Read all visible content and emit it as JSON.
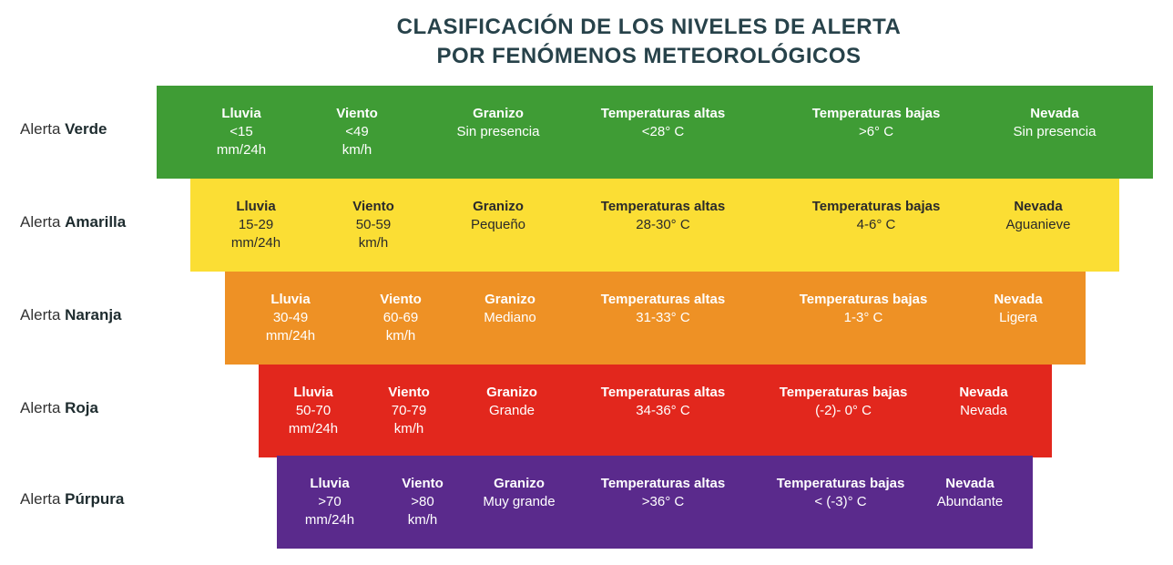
{
  "title": {
    "line1": "CLASIFICACIÓN DE LOS NIVELES DE ALERTA",
    "line2": "POR FENÓMENOS METEOROLÓGICOS"
  },
  "headers": {
    "lluvia": "Lluvia",
    "viento": "Viento",
    "granizo": "Granizo",
    "temp_altas": "Temperaturas altas",
    "temp_bajas": "Temperaturas bajas",
    "nevada": "Nevada"
  },
  "label_prefix": "Alerta",
  "levels": [
    {
      "name": "Verde",
      "color": "#3f9c35",
      "text_color": "#ffffff",
      "lluvia": [
        "<15",
        "mm/24h"
      ],
      "viento": [
        "<49",
        "km/h"
      ],
      "granizo": "Sin presencia",
      "temp_altas": "<28° C",
      "temp_bajas": ">6° C",
      "nevada": "Sin presencia"
    },
    {
      "name": "Amarilla",
      "color": "#fbde34",
      "text_color": "#2a2a2a",
      "lluvia": [
        "15-29",
        "mm/24h"
      ],
      "viento": [
        "50-59",
        "km/h"
      ],
      "granizo": "Pequeño",
      "temp_altas": "28-30° C",
      "temp_bajas": "4-6° C",
      "nevada": "Aguanieve"
    },
    {
      "name": "Naranja",
      "color": "#ee9125",
      "text_color": "#ffffff",
      "lluvia": [
        "30-49",
        "mm/24h"
      ],
      "viento": [
        "60-69",
        "km/h"
      ],
      "granizo": "Mediano",
      "temp_altas": "31-33° C",
      "temp_bajas": "1-3° C",
      "nevada": "Ligera"
    },
    {
      "name": "Roja",
      "color": "#e2271d",
      "text_color": "#ffffff",
      "lluvia": [
        "50-70",
        "mm/24h"
      ],
      "viento": [
        "70-79",
        "km/h"
      ],
      "granizo": "Grande",
      "temp_altas": "34-36° C",
      "temp_bajas": "(-2)- 0° C",
      "nevada": "Nevada"
    },
    {
      "name": "Púrpura",
      "color": "#5a2a8c",
      "text_color": "#ffffff",
      "lluvia": [
        ">70",
        "mm/24h"
      ],
      "viento": [
        ">80",
        "km/h"
      ],
      "granizo": "Muy grande",
      "temp_altas": ">36° C",
      "temp_bajas": "< (-3)° C",
      "nevada": "Abundante"
    }
  ]
}
